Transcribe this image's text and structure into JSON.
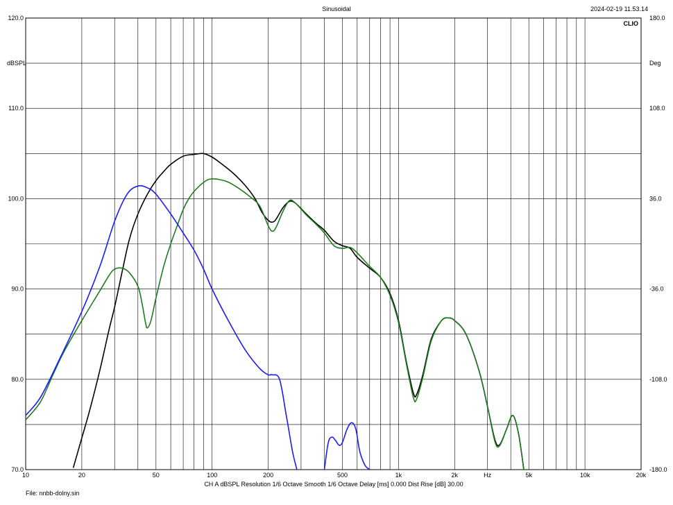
{
  "header": {
    "title": "Sinusoidal",
    "timestamp": "2024-02-19 11.53.14",
    "logo": "CLIO"
  },
  "footer": {
    "settings": "CH A   dBSPL   Resolution 1/6 Octave   Smooth 1/6 Octave   Delay [ms] 0.000   Dist Rise [dB] 30.00",
    "file": "File: nnbb-dolny.sin"
  },
  "chart_data": {
    "type": "line",
    "x_scale": "log",
    "xlim": [
      10,
      20000
    ],
    "ylim": [
      70,
      120
    ],
    "ylabel": "dBSPL",
    "y2label": "Deg",
    "y2lim": [
      -180,
      180
    ],
    "xlabel": "Hz",
    "grid": true,
    "x_ticks": [
      10,
      20,
      30,
      40,
      50,
      60,
      70,
      80,
      90,
      100,
      200,
      300,
      400,
      500,
      600,
      700,
      800,
      900,
      1000,
      2000,
      3000,
      4000,
      5000,
      6000,
      7000,
      8000,
      9000,
      10000,
      20000
    ],
    "x_tick_labels": [
      {
        "value": 10,
        "label": "10"
      },
      {
        "value": 20,
        "label": "20"
      },
      {
        "value": 50,
        "label": "50"
      },
      {
        "value": 100,
        "label": "100"
      },
      {
        "value": 200,
        "label": "200"
      },
      {
        "value": 500,
        "label": "500"
      },
      {
        "value": 1000,
        "label": "1k"
      },
      {
        "value": 2000,
        "label": "2k"
      },
      {
        "value": 3000,
        "label": "Hz"
      },
      {
        "value": 5000,
        "label": "5k"
      },
      {
        "value": 10000,
        "label": "10k"
      },
      {
        "value": 20000,
        "label": "20k"
      }
    ],
    "y_ticks": [
      70,
      75,
      80,
      85,
      90,
      95,
      100,
      105,
      110,
      115,
      120
    ],
    "y_tick_labels": [
      {
        "value": 70,
        "label": "70.0"
      },
      {
        "value": 80,
        "label": "80.0"
      },
      {
        "value": 90,
        "label": "90.0"
      },
      {
        "value": 100,
        "label": "100.0"
      },
      {
        "value": 110,
        "label": "110.0"
      },
      {
        "value": 115,
        "label": "dBSPL"
      },
      {
        "value": 120,
        "label": "120.0"
      }
    ],
    "y2_tick_labels": [
      {
        "value": -180,
        "label": "-180.0"
      },
      {
        "value": -108,
        "label": "-108.0"
      },
      {
        "value": -36,
        "label": "-36.0"
      },
      {
        "value": 36,
        "label": "36.0"
      },
      {
        "value": 108,
        "label": "108.0"
      },
      {
        "value": 144,
        "label": "Deg"
      },
      {
        "value": 180,
        "label": "180.0"
      }
    ],
    "series": [
      {
        "color": "#000000",
        "points": [
          [
            18,
            70.2
          ],
          [
            20,
            73.5
          ],
          [
            22,
            76.5
          ],
          [
            25,
            81
          ],
          [
            28,
            85.5
          ],
          [
            30,
            88
          ],
          [
            33,
            92
          ],
          [
            36,
            95.5
          ],
          [
            40,
            98.3
          ],
          [
            45,
            100.5
          ],
          [
            50,
            102
          ],
          [
            55,
            103
          ],
          [
            60,
            103.8
          ],
          [
            70,
            104.7
          ],
          [
            80,
            104.9
          ],
          [
            90,
            105
          ],
          [
            100,
            104.6
          ],
          [
            110,
            104
          ],
          [
            130,
            102.8
          ],
          [
            150,
            101.5
          ],
          [
            170,
            100
          ],
          [
            185,
            98.5
          ],
          [
            200,
            97.6
          ],
          [
            210,
            97.4
          ],
          [
            220,
            97.7
          ],
          [
            240,
            99
          ],
          [
            260,
            99.7
          ],
          [
            280,
            99.5
          ],
          [
            320,
            98.3
          ],
          [
            360,
            97.3
          ],
          [
            400,
            96.5
          ],
          [
            450,
            95.3
          ],
          [
            500,
            94.8
          ],
          [
            550,
            94.5
          ],
          [
            600,
            93.5
          ],
          [
            700,
            92.3
          ],
          [
            800,
            91.3
          ],
          [
            900,
            89.5
          ],
          [
            1000,
            86.5
          ],
          [
            1100,
            82
          ],
          [
            1200,
            78.5
          ],
          [
            1250,
            78.3
          ],
          [
            1350,
            80.5
          ],
          [
            1500,
            84.5
          ],
          [
            1700,
            86.5
          ],
          [
            1850,
            86.8
          ],
          [
            2000,
            86.5
          ],
          [
            2300,
            85
          ],
          [
            2700,
            81
          ],
          [
            3000,
            77
          ],
          [
            3300,
            73.2
          ],
          [
            3500,
            72.8
          ],
          [
            3800,
            74.5
          ],
          [
            4100,
            76
          ],
          [
            4400,
            74
          ],
          [
            4700,
            70
          ]
        ]
      },
      {
        "color": "#1f7a1f",
        "points": [
          [
            10,
            75.5
          ],
          [
            12,
            77.5
          ],
          [
            14,
            80.5
          ],
          [
            16,
            83
          ],
          [
            20,
            86.5
          ],
          [
            25,
            89.8
          ],
          [
            28,
            91.5
          ],
          [
            30,
            92.2
          ],
          [
            33,
            92.3
          ],
          [
            36,
            91.8
          ],
          [
            40,
            90.3
          ],
          [
            42,
            88.5
          ],
          [
            44,
            86.2
          ],
          [
            45,
            85.7
          ],
          [
            47,
            86.5
          ],
          [
            50,
            89
          ],
          [
            55,
            92.5
          ],
          [
            60,
            95
          ],
          [
            65,
            97
          ],
          [
            70,
            98.8
          ],
          [
            75,
            100
          ],
          [
            80,
            100.8
          ],
          [
            90,
            101.8
          ],
          [
            100,
            102.2
          ],
          [
            120,
            101.9
          ],
          [
            140,
            101.1
          ],
          [
            160,
            100.2
          ],
          [
            180,
            99.2
          ],
          [
            200,
            97
          ],
          [
            210,
            96.4
          ],
          [
            220,
            96.8
          ],
          [
            240,
            98.6
          ],
          [
            260,
            99.8
          ],
          [
            280,
            99.5
          ],
          [
            320,
            98.2
          ],
          [
            360,
            97.2
          ],
          [
            400,
            96.2
          ],
          [
            450,
            94.8
          ],
          [
            500,
            94.5
          ],
          [
            550,
            94.6
          ],
          [
            600,
            94
          ],
          [
            700,
            92.5
          ],
          [
            800,
            91.3
          ],
          [
            900,
            89.3
          ],
          [
            1000,
            86.3
          ],
          [
            1100,
            81.8
          ],
          [
            1200,
            78
          ],
          [
            1250,
            77.8
          ],
          [
            1350,
            80.2
          ],
          [
            1500,
            84.3
          ],
          [
            1700,
            86.5
          ],
          [
            1850,
            86.8
          ],
          [
            2000,
            86.5
          ],
          [
            2300,
            85
          ],
          [
            2700,
            81
          ],
          [
            3000,
            77
          ],
          [
            3300,
            73
          ],
          [
            3500,
            72.7
          ],
          [
            3800,
            74.5
          ],
          [
            4100,
            76
          ],
          [
            4400,
            74
          ],
          [
            4700,
            70
          ]
        ]
      },
      {
        "color": "#1a1aff",
        "segments": [
          [
            [
              10,
              76
            ],
            [
              12,
              78
            ],
            [
              15,
              82
            ],
            [
              20,
              87.5
            ],
            [
              25,
              92.5
            ],
            [
              30,
              97.5
            ],
            [
              35,
              100.5
            ],
            [
              40,
              101.4
            ],
            [
              45,
              101.2
            ],
            [
              50,
              100.5
            ],
            [
              60,
              98.3
            ],
            [
              70,
              96.2
            ],
            [
              80,
              94.3
            ],
            [
              90,
              92.2
            ],
            [
              100,
              90
            ],
            [
              120,
              86.8
            ],
            [
              150,
              83.3
            ],
            [
              180,
              81.2
            ],
            [
              200,
              80.5
            ],
            [
              210,
              80.5
            ],
            [
              230,
              80
            ],
            [
              250,
              76
            ],
            [
              270,
              72
            ],
            [
              285,
              70
            ]
          ],
          [
            [
              400,
              70
            ],
            [
              420,
              73
            ],
            [
              440,
              73.6
            ],
            [
              460,
              73.2
            ],
            [
              480,
              72.7
            ],
            [
              500,
              73
            ],
            [
              530,
              74.5
            ],
            [
              560,
              75.2
            ],
            [
              590,
              74.5
            ],
            [
              620,
              72
            ],
            [
              660,
              70.5
            ],
            [
              700,
              70
            ]
          ]
        ]
      }
    ]
  }
}
